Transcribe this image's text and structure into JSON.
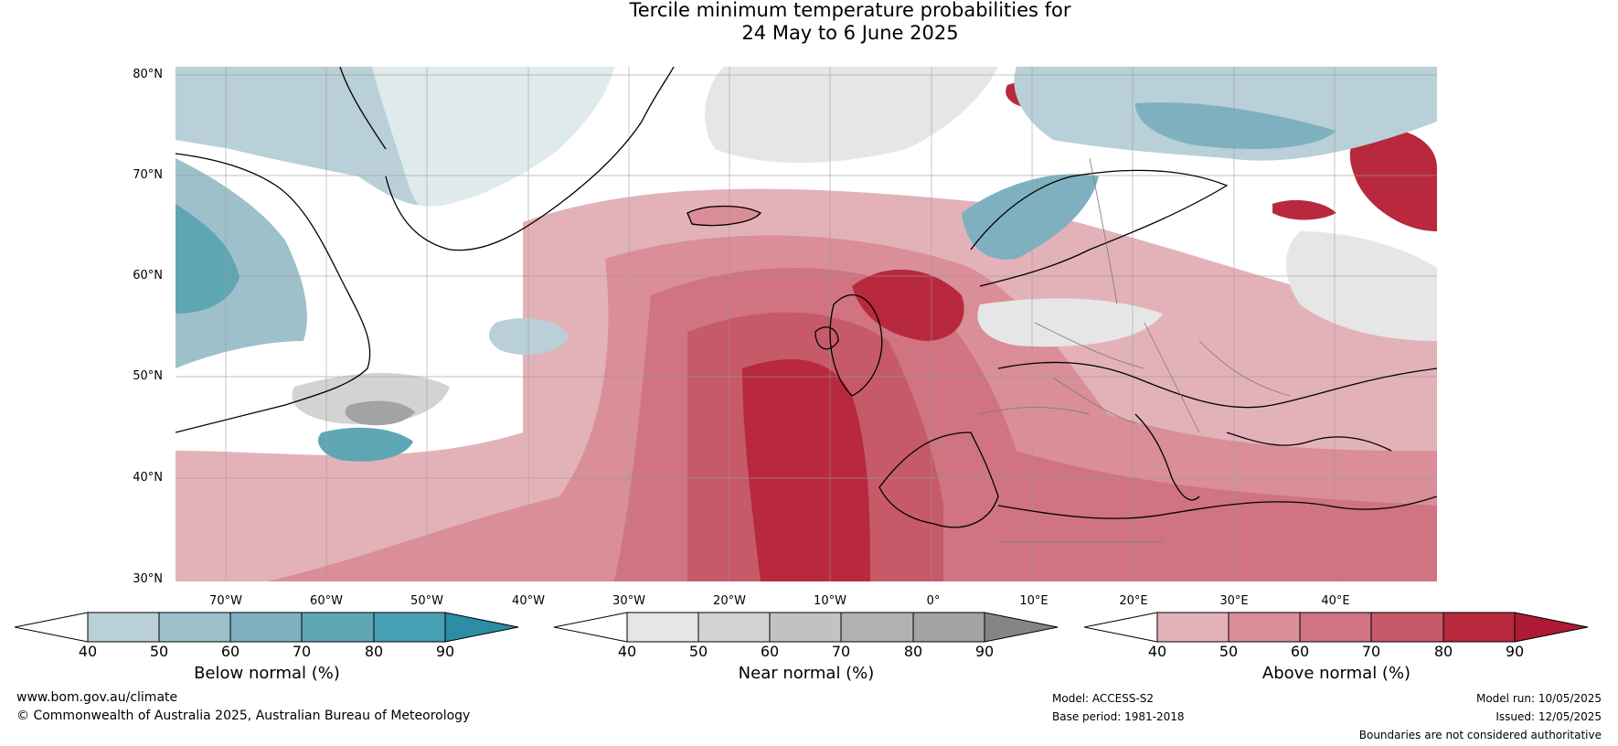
{
  "title_line1": "Tercile minimum temperature probabilities for",
  "title_line2": "24 May to 6 June 2025",
  "lat_labels": [
    "80°N",
    "70°N",
    "60°N",
    "50°N",
    "40°N",
    "30°N"
  ],
  "lon_labels": [
    "70°W",
    "60°W",
    "50°W",
    "40°W",
    "30°W",
    "20°W",
    "10°W",
    "0°",
    "10°E",
    "20°E",
    "30°E",
    "40°E"
  ],
  "colorbars": [
    {
      "label": "Below normal (%)",
      "ticks": [
        "40",
        "50",
        "60",
        "70",
        "80",
        "90"
      ],
      "colors": [
        "#ffffff",
        "#b9d0d8",
        "#9ec0cb",
        "#7fb0c0",
        "#5fa6b5",
        "#48a0b4",
        "#2c8da3"
      ]
    },
    {
      "label": "Near normal (%)",
      "ticks": [
        "40",
        "50",
        "60",
        "70",
        "80",
        "90"
      ],
      "colors": [
        "#ffffff",
        "#e6e6e6",
        "#d3d3d3",
        "#c2c2c2",
        "#b1b3b3",
        "#a3a3a3",
        "#858585"
      ]
    },
    {
      "label": "Above normal (%)",
      "ticks": [
        "40",
        "50",
        "60",
        "70",
        "80",
        "90"
      ],
      "colors": [
        "#ffffff",
        "#e3b2b8",
        "#d98e98",
        "#cf7480",
        "#c65a68",
        "#b8293e",
        "#ae1a33"
      ]
    }
  ],
  "footer": {
    "website": "www.bom.gov.au/climate",
    "copyright": "© Commonwealth of Australia 2025, Australian Bureau of Meteorology",
    "model": "Model: ACCESS-S2",
    "base_period": "Base period: 1981-2018",
    "model_run": "Model run: 10/05/2025",
    "issued": "Issued: 12/05/2025",
    "disclaimer": "Boundaries are not considered authoritative"
  }
}
